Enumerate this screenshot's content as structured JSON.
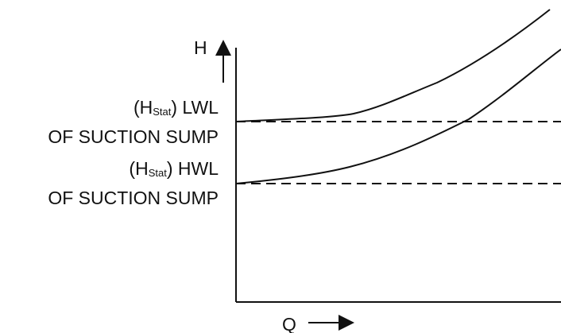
{
  "axes": {
    "y_label": "H",
    "x_label": "Q"
  },
  "labels": {
    "lwl": {
      "prefix_open": "(H",
      "subscript": "Stat",
      "suffix": ") LWL",
      "line2": "OF SUCTION SUMP"
    },
    "hwl": {
      "prefix_open": "(H",
      "subscript": "Stat",
      "suffix": ") HWL",
      "line2": "OF SUCTION SUMP"
    }
  },
  "colors": {
    "ink": "#111111",
    "background": "#ffffff"
  }
}
